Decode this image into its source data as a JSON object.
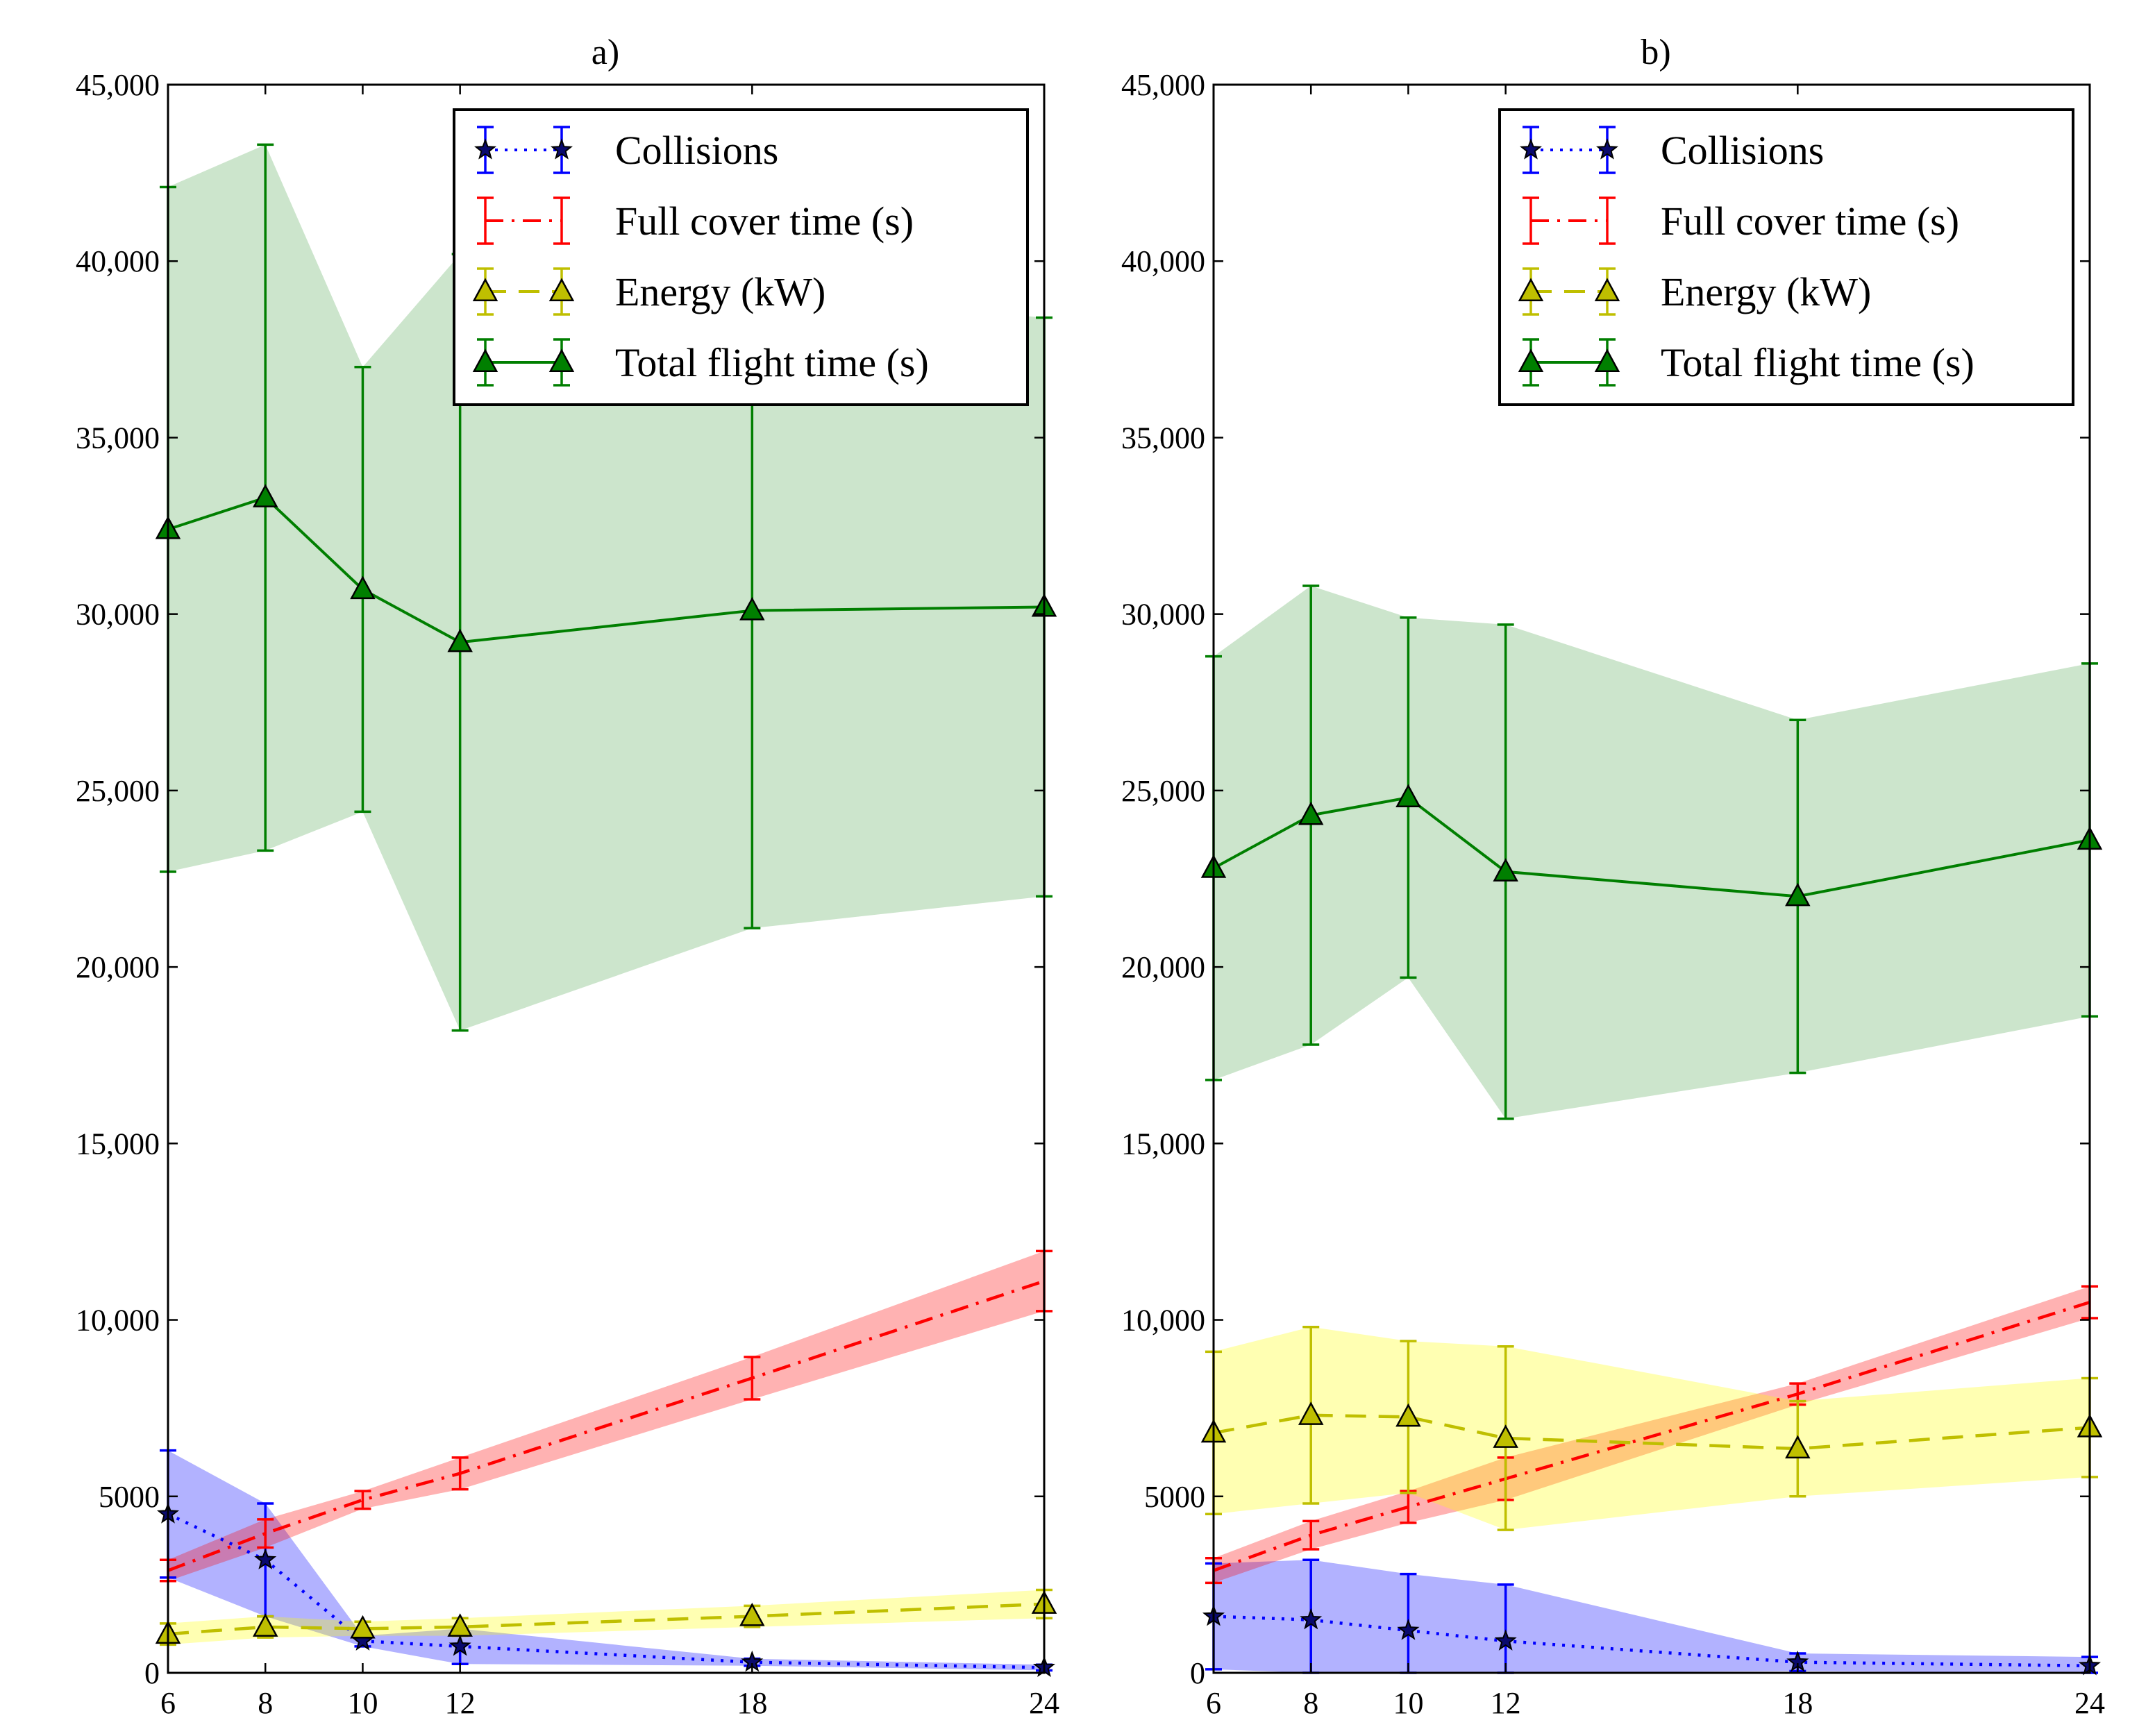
{
  "chart_data": [
    {
      "type": "line",
      "title": "a)",
      "xlabel": "",
      "ylabel": "",
      "x": [
        6,
        8,
        10,
        12,
        18,
        24
      ],
      "xticks": [
        "6",
        "8",
        "10",
        "12",
        "18",
        "24"
      ],
      "ylim": [
        0,
        45000
      ],
      "yticks": [
        0,
        5000,
        10000,
        15000,
        20000,
        25000,
        30000,
        35000,
        40000,
        45000
      ],
      "ytick_labels": [
        "0",
        "5000",
        "10,000",
        "15,000",
        "20,000",
        "25,000",
        "30,000",
        "35,000",
        "40,000",
        "45,000"
      ],
      "legend_position": "top-right",
      "series": [
        {
          "name": "Collisions",
          "values": [
            4500,
            3200,
            900,
            750,
            300,
            150
          ],
          "errors": [
            1800,
            1600,
            150,
            500,
            100,
            80
          ],
          "color": "#0000ff",
          "style": "dotted",
          "marker": "star"
        },
        {
          "name": "Full cover time (s)",
          "values": [
            2900,
            3950,
            4900,
            5650,
            8350,
            11100
          ],
          "errors": [
            300,
            400,
            250,
            450,
            600,
            850
          ],
          "color": "#ff0000",
          "style": "dashdot",
          "marker": "none"
        },
        {
          "name": "Energy (kW)",
          "values": [
            1100,
            1300,
            1250,
            1300,
            1600,
            1950
          ],
          "errors": [
            300,
            300,
            200,
            250,
            300,
            400
          ],
          "color": "#bfbf00",
          "style": "dashed",
          "marker": "triangle"
        },
        {
          "name": "Total flight time (s)",
          "values": [
            32400,
            33300,
            30700,
            29200,
            30100,
            30200
          ],
          "errors": [
            9700,
            10000,
            6300,
            11000,
            9000,
            8200
          ],
          "color": "#007f00",
          "style": "solid",
          "marker": "triangle"
        }
      ]
    },
    {
      "type": "line",
      "title": "b)",
      "xlabel": "",
      "ylabel": "",
      "x": [
        6,
        8,
        10,
        12,
        18,
        24
      ],
      "xticks": [
        "6",
        "8",
        "10",
        "12",
        "18",
        "24"
      ],
      "ylim": [
        0,
        45000
      ],
      "yticks": [
        0,
        5000,
        10000,
        15000,
        20000,
        25000,
        30000,
        35000,
        40000,
        45000
      ],
      "ytick_labels": [
        "0",
        "5000",
        "10,000",
        "15,000",
        "20,000",
        "25,000",
        "30,000",
        "35,000",
        "40,000",
        "45,000"
      ],
      "legend_position": "top-right",
      "series": [
        {
          "name": "Collisions",
          "values": [
            1600,
            1500,
            1200,
            900,
            300,
            200
          ],
          "errors": [
            1500,
            1700,
            1600,
            1600,
            250,
            250
          ],
          "color": "#0000ff",
          "style": "dotted",
          "marker": "star"
        },
        {
          "name": "Full cover time (s)",
          "values": [
            2900,
            3900,
            4700,
            5500,
            7900,
            10500
          ],
          "errors": [
            350,
            400,
            450,
            600,
            300,
            450
          ],
          "color": "#ff0000",
          "style": "dashdot",
          "marker": "none"
        },
        {
          "name": "Energy (kW)",
          "values": [
            6800,
            7300,
            7250,
            6650,
            6350,
            6950
          ],
          "errors": [
            2300,
            2500,
            2150,
            2600,
            1350,
            1400
          ],
          "color": "#bfbf00",
          "style": "dashed",
          "marker": "triangle"
        },
        {
          "name": "Total flight time (s)",
          "values": [
            22800,
            24300,
            24800,
            22700,
            22000,
            23600
          ],
          "errors": [
            6000,
            6500,
            5100,
            7000,
            5000,
            5000
          ],
          "color": "#007f00",
          "style": "solid",
          "marker": "triangle"
        }
      ]
    }
  ]
}
